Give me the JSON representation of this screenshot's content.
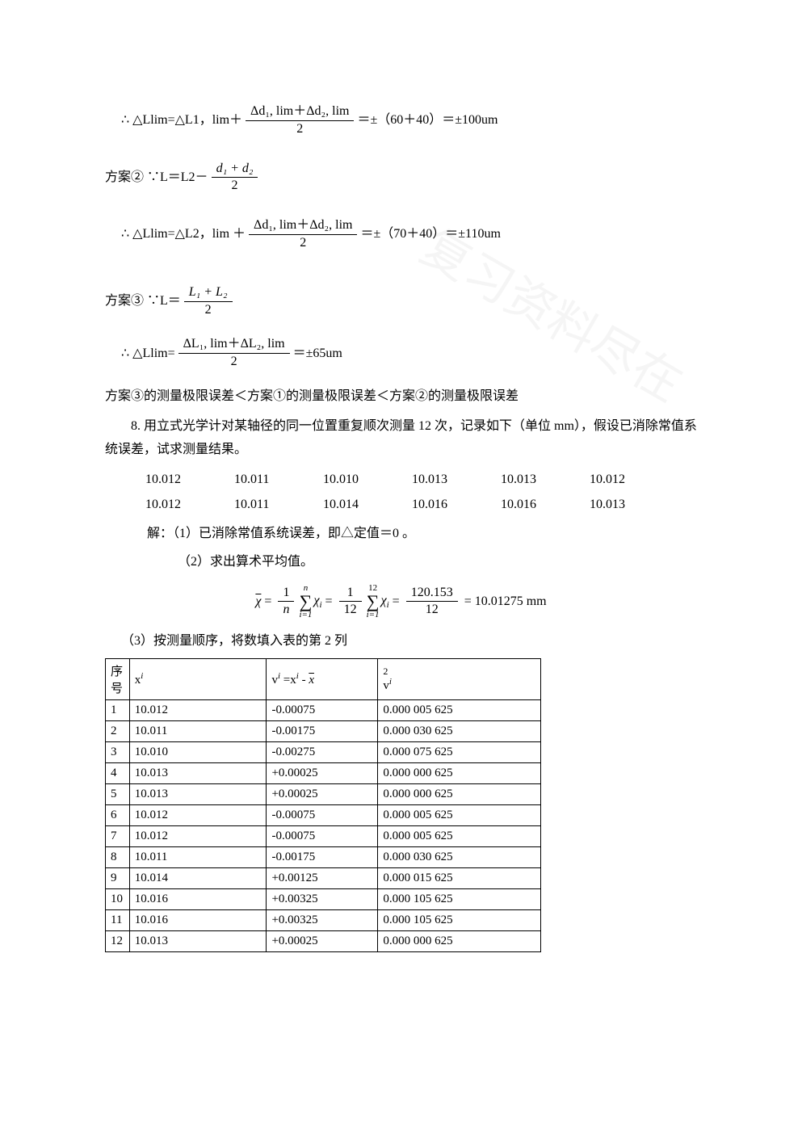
{
  "formulas": {
    "f1_prefix": "∴ △Llim=△L1，lim＋",
    "f1_num": "Δd₁, lim＋Δd₂, lim",
    "f1_den": "2",
    "f1_suffix": "＝±（60＋40）＝±100um",
    "f2_prefix": "方案② ∵L＝L2－",
    "f2_num": "d₁ + d₂",
    "f2_den": "2",
    "f3_prefix": "∴ △Llim=△L2，lim ＋",
    "f3_num": "Δd₁, lim＋Δd₂, lim",
    "f3_den": "2",
    "f3_suffix": "＝±（70＋40）＝±110um",
    "f4_prefix": "方案③ ∵L＝",
    "f4_num": "L₁ + L₂",
    "f4_den": "2",
    "f5_prefix": "∴ △Llim=",
    "f5_num": "ΔL₁, lim＋ΔL₂, lim",
    "f5_den": "2",
    "f5_suffix": "＝±65um"
  },
  "comparison": "方案③的测量极限误差＜方案①的测量极限误差＜方案②的测量极限误差",
  "q8_text": "8. 用立式光学计对某轴径的同一位置重复顺次测量 12 次，记录如下（单位 mm），假设已消除常值系统误差，试求测量结果。",
  "measurements": {
    "row1": [
      "10.012",
      "10.011",
      "10.010",
      "10.013",
      "10.013",
      "10.012"
    ],
    "row2": [
      "10.012",
      "10.011",
      "10.014",
      "10.016",
      "10.016",
      "10.013"
    ]
  },
  "solution": {
    "s1": "解：（1）已消除常值系统误差，即△定值＝0 。",
    "s2": "（2）求出算术平均值。",
    "s3": "（3）按测量顺序，将数填入表的第 2 列"
  },
  "mean_eq": {
    "sum_value": "120.153",
    "n": "12",
    "result": "10.01275",
    "unit": "mm"
  },
  "table": {
    "headers": {
      "seq": "序号",
      "xi_label": "x",
      "vi_label_pre": "v",
      "vi_label_eq": " =x",
      "vi_label_suf": " - ",
      "vi2_label": "v"
    },
    "rows": [
      {
        "n": "1",
        "xi": "10.012",
        "vi": "-0.00075",
        "vi2": "0.000 005 625"
      },
      {
        "n": "2",
        "xi": "10.011",
        "vi": "-0.00175",
        "vi2": "0.000 030 625"
      },
      {
        "n": "3",
        "xi": "10.010",
        "vi": "-0.00275",
        "vi2": "0.000 075 625"
      },
      {
        "n": "4",
        "xi": "10.013",
        "vi": "+0.00025",
        "vi2": "0.000 000 625"
      },
      {
        "n": "5",
        "xi": "10.013",
        "vi": "+0.00025",
        "vi2": "0.000 000 625"
      },
      {
        "n": "6",
        "xi": "10.012",
        "vi": "-0.00075",
        "vi2": "0.000 005 625"
      },
      {
        "n": "7",
        "xi": "10.012",
        "vi": "-0.00075",
        "vi2": "0.000 005 625"
      },
      {
        "n": "8",
        "xi": "10.011",
        "vi": "-0.00175",
        "vi2": "0.000 030 625"
      },
      {
        "n": "9",
        "xi": "10.014",
        "vi": "+0.00125",
        "vi2": "0.000 015 625"
      },
      {
        "n": "10",
        "xi": "10.016",
        "vi": "+0.00325",
        "vi2": "0.000 105 625"
      },
      {
        "n": "11",
        "xi": "10.016",
        "vi": "+0.00325",
        "vi2": "0.000 105 625"
      },
      {
        "n": "12",
        "xi": "10.013",
        "vi": "+0.00025",
        "vi2": "0.000 000 625"
      }
    ]
  }
}
